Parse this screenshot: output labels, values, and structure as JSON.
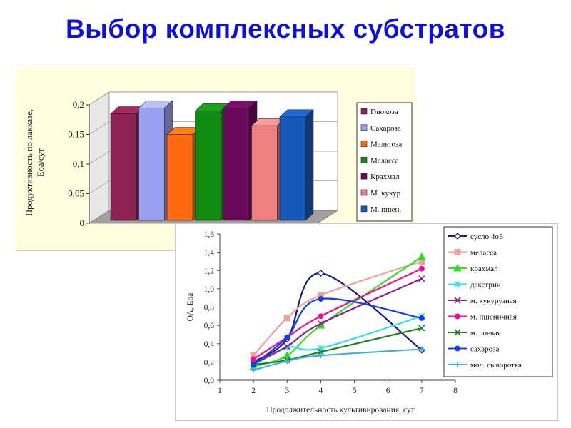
{
  "slide": {
    "title": "Выбор комплексных субстратов"
  },
  "chart_data": [
    {
      "type": "bar",
      "title": "",
      "xlabel": "",
      "ylabel": "Продуктивность по лакказе, Еоа/сут",
      "ylim": [
        0,
        0.2
      ],
      "yticks": [
        "0",
        "0,05",
        "0,1",
        "0,15",
        "0,2"
      ],
      "legend_position": "right",
      "series": [
        {
          "name": "Глюкоза",
          "value": 0.18,
          "color": "#8b2252"
        },
        {
          "name": "Сахароза",
          "value": 0.19,
          "color": "#9aa0f0"
        },
        {
          "name": "Мальтоза",
          "value": 0.145,
          "color": "#ff6a10"
        },
        {
          "name": "Меласса",
          "value": 0.185,
          "color": "#118a11"
        },
        {
          "name": "Крахмал",
          "value": 0.19,
          "color": "#6a0a5a"
        },
        {
          "name": "М. кукур",
          "value": 0.16,
          "color": "#f08080"
        },
        {
          "name": "М. пшен.",
          "value": 0.175,
          "color": "#1858b8"
        }
      ]
    },
    {
      "type": "line",
      "title": "",
      "xlabel": "Продолжительность культивирования, сут.",
      "ylabel": "ОА, Еоа",
      "xlim": [
        1,
        8
      ],
      "ylim": [
        0,
        1.6
      ],
      "xticks": [
        "1",
        "2",
        "3",
        "4",
        "5",
        "6",
        "7",
        "8"
      ],
      "yticks": [
        "0,0",
        "0,2",
        "0,4",
        "0,6",
        "0,8",
        "1,0",
        "1,2",
        "1,4",
        "1,6"
      ],
      "grid": false,
      "legend_position": "right",
      "x": [
        2,
        3,
        4,
        7
      ],
      "series": [
        {
          "name": "сусло 4оБ",
          "values": [
            0.2,
            0.45,
            1.17,
            0.33
          ],
          "color": "#1a1a80",
          "marker": "diamond"
        },
        {
          "name": "меласса",
          "values": [
            0.27,
            0.68,
            0.93,
            1.3
          ],
          "color": "#f0a0a0",
          "marker": "square"
        },
        {
          "name": "крахмал",
          "values": [
            0.15,
            0.27,
            0.6,
            1.35
          ],
          "color": "#30e020",
          "marker": "triangle"
        },
        {
          "name": "декстрин",
          "values": [
            0.16,
            0.36,
            0.35,
            0.7
          ],
          "color": "#30e0e0",
          "marker": "star"
        },
        {
          "name": "м. кукурузная",
          "values": [
            0.18,
            0.37,
            0.62,
            1.11
          ],
          "color": "#902090",
          "marker": "x"
        },
        {
          "name": "м. пшеничная",
          "values": [
            0.23,
            0.47,
            0.7,
            1.22
          ],
          "color": "#f01090",
          "marker": "circle"
        },
        {
          "name": "м. соевая",
          "values": [
            0.17,
            0.22,
            0.31,
            0.57
          ],
          "color": "#208020",
          "marker": "x"
        },
        {
          "name": "сахароза",
          "values": [
            0.17,
            0.47,
            0.89,
            0.68
          ],
          "color": "#1040e0",
          "marker": "circle"
        },
        {
          "name": "мол. сыворотка",
          "values": [
            0.11,
            0.21,
            0.27,
            0.34
          ],
          "color": "#40b0e0",
          "marker": "plus"
        }
      ]
    }
  ]
}
